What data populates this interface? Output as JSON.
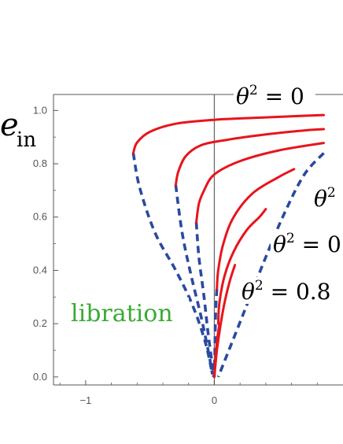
{
  "chart_data": {
    "type": "line",
    "title": "",
    "ylabel": "e_in",
    "xlabel": "",
    "xlim": [
      -1.25,
      1.0
    ],
    "ylim": [
      -0.03,
      1.06
    ],
    "x_ticks": [
      -1,
      0
    ],
    "x_tick_labels": [
      "−1",
      "0"
    ],
    "y_ticks": [
      0.0,
      0.2,
      0.4,
      0.6,
      0.8,
      1.0
    ],
    "y_tick_labels": [
      "0.0",
      "0.2",
      "0.4",
      "0.6",
      "0.8",
      "1.0"
    ],
    "colors": {
      "solid": "#e8141c",
      "dashed": "#2a4aa0",
      "annotation": "#3aaa35",
      "axis": "#555555"
    },
    "annotations": [
      {
        "id": "theta0",
        "prefix": "θ",
        "sup": "2",
        "text": " = 0"
      },
      {
        "id": "theta2",
        "prefix": "θ",
        "sup": "2",
        "text": ""
      },
      {
        "id": "theta3",
        "prefix": "θ",
        "sup": "2",
        "text": " = 0"
      },
      {
        "id": "theta4",
        "prefix": "θ",
        "sup": "2",
        "text": " = 0.8"
      },
      {
        "id": "libration",
        "text": "libration"
      }
    ],
    "series": [
      {
        "style": "solid",
        "points": [
          [
            -0.63,
            0.84
          ],
          [
            -0.6,
            0.88
          ],
          [
            -0.5,
            0.92
          ],
          [
            -0.3,
            0.95
          ],
          [
            0,
            0.965
          ],
          [
            0.3,
            0.972
          ],
          [
            0.6,
            0.978
          ],
          [
            0.85,
            0.983
          ]
        ]
      },
      {
        "style": "solid",
        "points": [
          [
            -0.3,
            0.72
          ],
          [
            -0.28,
            0.77
          ],
          [
            -0.22,
            0.83
          ],
          [
            -0.1,
            0.87
          ],
          [
            0.1,
            0.89
          ],
          [
            0.4,
            0.91
          ],
          [
            0.7,
            0.925
          ],
          [
            0.85,
            0.93
          ]
        ]
      },
      {
        "style": "solid",
        "points": [
          [
            -0.14,
            0.58
          ],
          [
            -0.12,
            0.65
          ],
          [
            -0.08,
            0.7
          ],
          [
            0,
            0.76
          ],
          [
            0.2,
            0.81
          ],
          [
            0.5,
            0.85
          ],
          [
            0.85,
            0.878
          ]
        ]
      },
      {
        "style": "solid",
        "points": [
          [
            0.02,
            0.33
          ],
          [
            0.03,
            0.4
          ],
          [
            0.07,
            0.5
          ],
          [
            0.15,
            0.6
          ],
          [
            0.3,
            0.69
          ],
          [
            0.5,
            0.75
          ],
          [
            0.62,
            0.78
          ]
        ]
      },
      {
        "style": "solid",
        "points": [
          [
            0.03,
            0.2
          ],
          [
            0.04,
            0.28
          ],
          [
            0.08,
            0.38
          ],
          [
            0.15,
            0.47
          ],
          [
            0.25,
            0.55
          ],
          [
            0.35,
            0.6
          ],
          [
            0.4,
            0.63
          ]
        ]
      },
      {
        "style": "solid",
        "points": [
          [
            0,
            0
          ],
          [
            0.02,
            0.1
          ],
          [
            0.05,
            0.2
          ],
          [
            0.08,
            0.28
          ],
          [
            0.12,
            0.36
          ],
          [
            0.16,
            0.42
          ]
        ]
      },
      {
        "style": "solid",
        "points": [
          [
            0,
            0
          ],
          [
            0.01,
            0.08
          ],
          [
            0.025,
            0.15
          ],
          [
            0.04,
            0.2
          ]
        ]
      },
      {
        "style": "dashed",
        "points": [
          [
            -0.63,
            0.84
          ],
          [
            -0.58,
            0.71
          ],
          [
            -0.46,
            0.54
          ],
          [
            -0.3,
            0.4
          ],
          [
            -0.17,
            0.27
          ],
          [
            -0.07,
            0.13
          ],
          [
            -0.015,
            0.01
          ]
        ]
      },
      {
        "style": "dashed",
        "points": [
          [
            -0.3,
            0.72
          ],
          [
            -0.25,
            0.54
          ],
          [
            -0.18,
            0.38
          ],
          [
            -0.1,
            0.22
          ],
          [
            -0.04,
            0.08
          ],
          [
            -0.015,
            0.01
          ]
        ]
      },
      {
        "style": "dashed",
        "points": [
          [
            -0.14,
            0.58
          ],
          [
            -0.12,
            0.45
          ],
          [
            -0.08,
            0.3
          ],
          [
            -0.05,
            0.17
          ],
          [
            -0.02,
            0.06
          ],
          [
            -0.005,
            0.0
          ]
        ]
      },
      {
        "style": "dashed",
        "points": [
          [
            0.02,
            0.33
          ],
          [
            0.01,
            0.24
          ],
          [
            0.005,
            0.12
          ],
          [
            0,
            0
          ]
        ]
      },
      {
        "style": "dashed",
        "points": [
          [
            0.85,
            0.84
          ],
          [
            0.7,
            0.76
          ],
          [
            0.55,
            0.62
          ],
          [
            0.4,
            0.45
          ],
          [
            0.22,
            0.23
          ],
          [
            0.08,
            0.06
          ],
          [
            0.03,
            0.0
          ]
        ]
      }
    ]
  }
}
